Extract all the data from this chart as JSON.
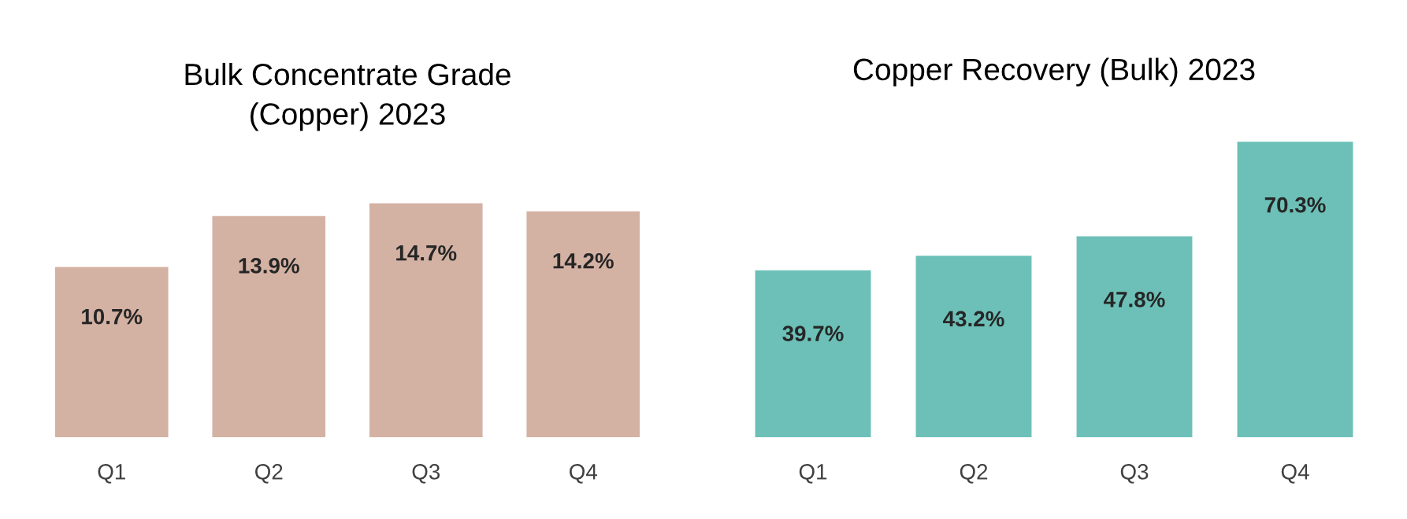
{
  "chart_data": [
    {
      "type": "bar",
      "title": "Bulk Concentrate Grade\n(Copper) 2023",
      "categories": [
        "Q1",
        "Q2",
        "Q3",
        "Q4"
      ],
      "values": [
        10.7,
        13.9,
        14.7,
        14.2
      ],
      "value_labels": [
        "10.7%",
        "13.9%",
        "14.7%",
        "14.2%"
      ],
      "color": "#d4b2a3"
    },
    {
      "type": "bar",
      "title": "Copper Recovery (Bulk) 2023",
      "categories": [
        "Q1",
        "Q2",
        "Q3",
        "Q4"
      ],
      "values": [
        39.7,
        43.2,
        47.8,
        70.3
      ],
      "value_labels": [
        "39.7%",
        "43.2%",
        "47.8%",
        "70.3%"
      ],
      "color": "#6cc0b7"
    }
  ]
}
